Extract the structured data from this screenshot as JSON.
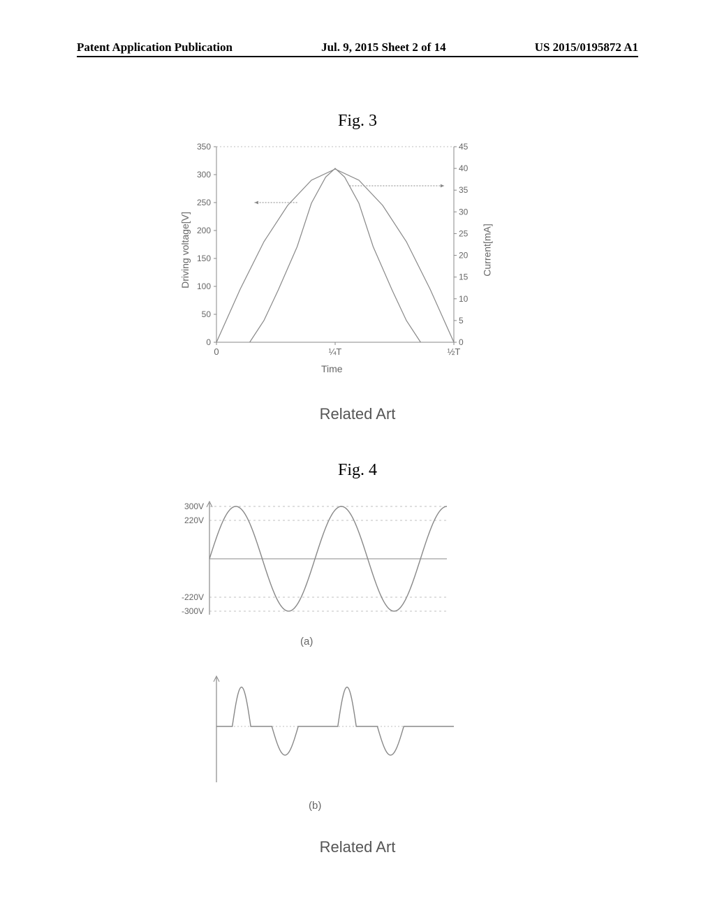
{
  "header": {
    "left": "Patent Application Publication",
    "center": "Jul. 9, 2015  Sheet 2 of 14",
    "right": "US 2015/0195872 A1"
  },
  "fig3": {
    "label": "Fig. 3",
    "related_art": "Related Art",
    "type": "line",
    "y_left_label": "Driving voltage[V]",
    "y_right_label": "Current[mA]",
    "x_label": "Time",
    "y_left_ticks": [
      0,
      50,
      100,
      150,
      200,
      250,
      300,
      350
    ],
    "y_right_ticks": [
      0,
      5,
      10,
      15,
      20,
      25,
      30,
      35,
      40,
      45
    ],
    "x_ticks": [
      "0",
      "¼T",
      "½T"
    ],
    "y_left_lim": [
      0,
      350
    ],
    "y_right_lim": [
      0,
      45
    ],
    "x_lim": [
      0,
      0.5
    ],
    "voltage_curve": {
      "color": "#888888",
      "line_width": 1.2,
      "points": [
        [
          0,
          0
        ],
        [
          0.05,
          95
        ],
        [
          0.1,
          180
        ],
        [
          0.15,
          245
        ],
        [
          0.2,
          290
        ],
        [
          0.25,
          310
        ],
        [
          0.3,
          290
        ],
        [
          0.35,
          245
        ],
        [
          0.4,
          180
        ],
        [
          0.45,
          95
        ],
        [
          0.5,
          0
        ]
      ]
    },
    "current_curve": {
      "color": "#888888",
      "line_width": 1.2,
      "points": [
        [
          0.07,
          0
        ],
        [
          0.1,
          5
        ],
        [
          0.13,
          12
        ],
        [
          0.17,
          22
        ],
        [
          0.2,
          32
        ],
        [
          0.23,
          38
        ],
        [
          0.25,
          40
        ],
        [
          0.27,
          38
        ],
        [
          0.3,
          32
        ],
        [
          0.33,
          22
        ],
        [
          0.37,
          12
        ],
        [
          0.4,
          5
        ],
        [
          0.43,
          0
        ]
      ]
    },
    "arrow_left": {
      "from": [
        0.17,
        250
      ],
      "to": [
        0.08,
        250
      ]
    },
    "arrow_right": {
      "from": [
        0.28,
        280
      ],
      "to": [
        0.48,
        280
      ]
    },
    "grid_color": "#cccccc",
    "axis_color": "#888888",
    "background_color": "#ffffff",
    "label_fontsize": 14,
    "tick_fontsize": 13
  },
  "fig4": {
    "label": "Fig. 4",
    "related_art": "Related Art",
    "subplot_a": {
      "label": "(a)",
      "type": "line",
      "y_ticks_labels": [
        "300V",
        "220V",
        "-220V",
        "-300V"
      ],
      "y_tick_values": [
        300,
        220,
        -220,
        -300
      ],
      "y_lim": [
        -320,
        320
      ],
      "x_lim": [
        0,
        4.5
      ],
      "curve": {
        "color": "#888888",
        "line_width": 1.2,
        "amplitude": 300,
        "periods": 2.25,
        "phase": 0
      },
      "grid_color": "#aaaaaa",
      "axis_color": "#888888"
    },
    "subplot_b": {
      "label": "(b)",
      "type": "line",
      "y_lim": [
        -1.2,
        1.5
      ],
      "x_lim": [
        0,
        4.5
      ],
      "curve_segments": [
        {
          "type": "pulse_up",
          "x": 0.3,
          "width": 0.35,
          "height": 1.3
        },
        {
          "type": "pulse_down",
          "x": 1.05,
          "width": 0.5,
          "height": -0.95
        },
        {
          "type": "pulse_up",
          "x": 2.3,
          "width": 0.35,
          "height": 1.3
        },
        {
          "type": "pulse_down",
          "x": 3.05,
          "width": 0.5,
          "height": -0.95
        }
      ],
      "grid_color": "#aaaaaa",
      "axis_color": "#888888"
    }
  }
}
